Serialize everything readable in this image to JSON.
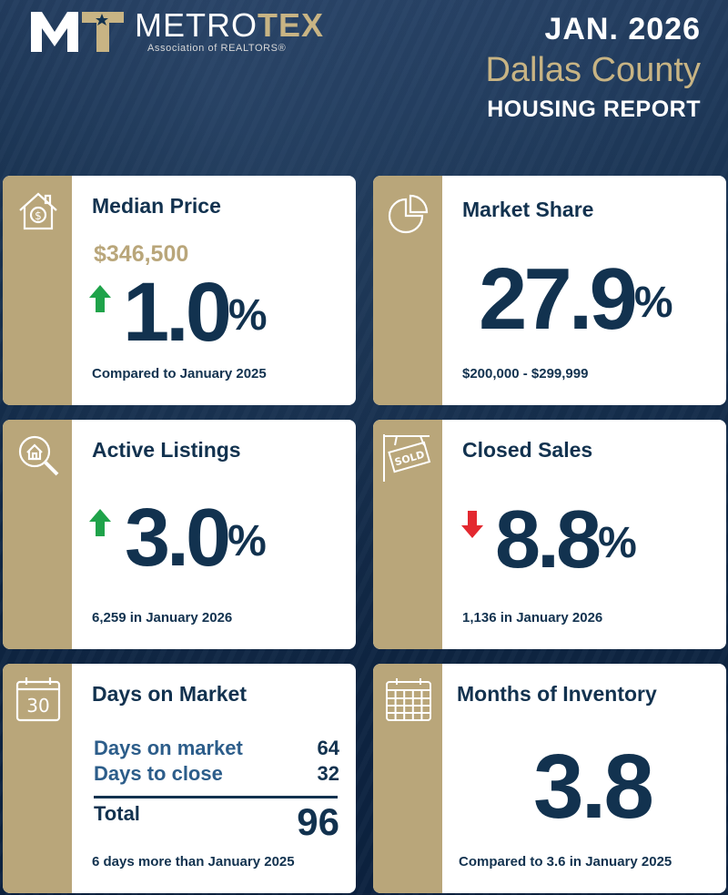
{
  "header": {
    "brand_name": "METROTEX",
    "brand_first": "METRO",
    "brand_second": "TEX",
    "brand_sub": "Association of REALTORS®",
    "date": "JAN. 2026",
    "county": "Dallas County",
    "report": "HOUSING REPORT"
  },
  "colors": {
    "navy": "#12324f",
    "gold": "#b9a67a",
    "up_arrow": "#1fa34a",
    "down_arrow": "#e3282f",
    "background": "#0f2540"
  },
  "cards": {
    "median_price": {
      "icon": "house-dollar-icon",
      "title": "Median Price",
      "price": "$346,500",
      "change_value": "1.0",
      "change_unit": "%",
      "direction": "up",
      "footnote": "Compared to January 2025"
    },
    "market_share": {
      "icon": "pie-chart-icon",
      "title": "Market Share",
      "value": "27.9",
      "unit": "%",
      "footnote": "$200,000 - $299,999"
    },
    "active_listings": {
      "icon": "house-magnifier-icon",
      "title": "Active Listings",
      "change_value": "3.0",
      "change_unit": "%",
      "direction": "up",
      "footnote": "6,259 in January 2026"
    },
    "closed_sales": {
      "icon": "sold-sign-icon",
      "title": "Closed Sales",
      "change_value": "8.8",
      "change_unit": "%",
      "direction": "down",
      "footnote": "1,136 in January 2026"
    },
    "days_on_market": {
      "icon": "calendar-30-icon",
      "icon_text": "30",
      "title": "Days on Market",
      "rows": [
        {
          "label": "Days on market",
          "value": "64"
        },
        {
          "label": "Days to close",
          "value": "32"
        }
      ],
      "total_label": "Total",
      "total_value": "96",
      "footnote": "6 days more than January 2025"
    },
    "months_of_inventory": {
      "icon": "calendar-grid-icon",
      "title": "Months of Inventory",
      "value": "3.8",
      "footnote": "Compared to 3.6 in January 2025"
    }
  }
}
